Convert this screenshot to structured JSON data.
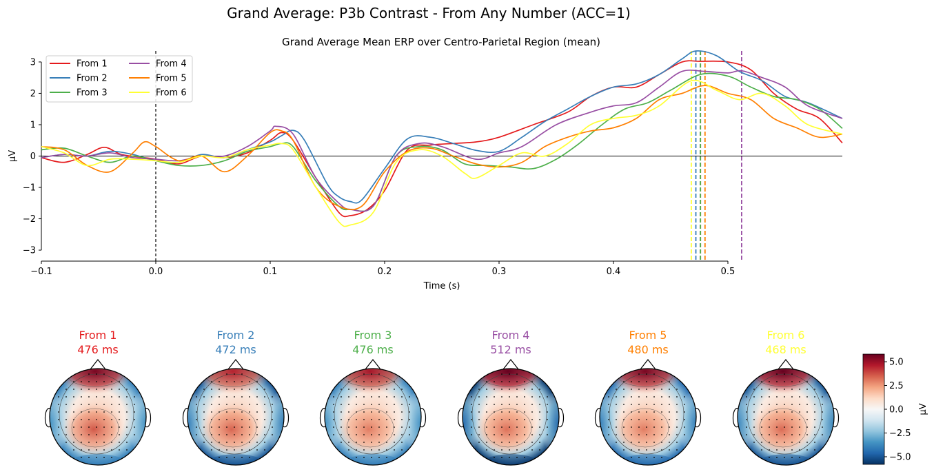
{
  "figure": {
    "suptitle": "Grand Average: P3b Contrast - From Any Number (ACC=1)"
  },
  "chart_data": [
    {
      "type": "line",
      "title": "Grand Average Mean ERP over Centro-Parietal Region (mean)",
      "xlabel": "Time (s)",
      "ylabel": "µV",
      "xlim": [
        -0.1,
        0.6
      ],
      "ylim": [
        -3.35,
        3.35
      ],
      "xticks": [
        -0.1,
        0.0,
        0.1,
        0.2,
        0.3,
        0.4,
        0.5
      ],
      "xtick_labels": [
        "−0.1",
        "0.0",
        "0.1",
        "0.2",
        "0.3",
        "0.4",
        "0.5"
      ],
      "yticks": [
        -3,
        -2,
        -1,
        0,
        1,
        2,
        3
      ],
      "ytick_labels": [
        "−3",
        "−2",
        "−1",
        "0",
        "1",
        "2",
        "3"
      ],
      "grid": false,
      "legend": {
        "placement": "top-left",
        "columns": 2
      },
      "reference_lines": [
        {
          "orientation": "vertical",
          "x": 0.0,
          "style": "dashed",
          "color": "#000000"
        },
        {
          "orientation": "horizontal",
          "y": 0.0,
          "style": "solid",
          "color": "#000000"
        }
      ],
      "peak_markers": [
        {
          "series": "From 6",
          "x": 0.468
        },
        {
          "series": "From 2",
          "x": 0.472
        },
        {
          "series": "From 1",
          "x": 0.476
        },
        {
          "series": "From 3",
          "x": 0.476
        },
        {
          "series": "From 5",
          "x": 0.48
        },
        {
          "series": "From 4",
          "x": 0.512
        }
      ],
      "series": [
        {
          "name": "From 1",
          "color": "#e41a1c",
          "points": [
            [
              -0.1,
              -0.05
            ],
            [
              -0.08,
              -0.2
            ],
            [
              -0.06,
              0.05
            ],
            [
              -0.045,
              0.28
            ],
            [
              -0.03,
              0.05
            ],
            [
              -0.01,
              -0.05
            ],
            [
              0.0,
              -0.1
            ],
            [
              0.02,
              -0.25
            ],
            [
              0.04,
              0.0
            ],
            [
              0.06,
              -0.05
            ],
            [
              0.08,
              0.1
            ],
            [
              0.1,
              0.5
            ],
            [
              0.11,
              0.75
            ],
            [
              0.12,
              0.5
            ],
            [
              0.14,
              -0.7
            ],
            [
              0.16,
              -1.8
            ],
            [
              0.17,
              -1.9
            ],
            [
              0.185,
              -1.7
            ],
            [
              0.2,
              -1.1
            ],
            [
              0.22,
              0.2
            ],
            [
              0.24,
              0.35
            ],
            [
              0.26,
              0.4
            ],
            [
              0.28,
              0.45
            ],
            [
              0.3,
              0.6
            ],
            [
              0.33,
              1.0
            ],
            [
              0.36,
              1.4
            ],
            [
              0.38,
              1.9
            ],
            [
              0.4,
              2.2
            ],
            [
              0.42,
              2.2
            ],
            [
              0.44,
              2.6
            ],
            [
              0.46,
              3.0
            ],
            [
              0.476,
              3.02
            ],
            [
              0.5,
              3.0
            ],
            [
              0.52,
              2.75
            ],
            [
              0.54,
              2.0
            ],
            [
              0.56,
              1.5
            ],
            [
              0.58,
              1.2
            ],
            [
              0.6,
              0.42
            ]
          ]
        },
        {
          "name": "From 2",
          "color": "#377eb8",
          "points": [
            [
              -0.1,
              -0.05
            ],
            [
              -0.08,
              0.05
            ],
            [
              -0.06,
              0.0
            ],
            [
              -0.04,
              0.15
            ],
            [
              -0.02,
              0.05
            ],
            [
              0.0,
              -0.15
            ],
            [
              0.02,
              -0.2
            ],
            [
              0.04,
              0.05
            ],
            [
              0.06,
              -0.05
            ],
            [
              0.08,
              0.2
            ],
            [
              0.1,
              0.45
            ],
            [
              0.11,
              0.65
            ],
            [
              0.12,
              0.82
            ],
            [
              0.13,
              0.5
            ],
            [
              0.15,
              -0.9
            ],
            [
              0.16,
              -1.3
            ],
            [
              0.17,
              -1.45
            ],
            [
              0.18,
              -1.4
            ],
            [
              0.2,
              -0.4
            ],
            [
              0.22,
              0.55
            ],
            [
              0.24,
              0.6
            ],
            [
              0.26,
              0.4
            ],
            [
              0.28,
              0.18
            ],
            [
              0.3,
              0.15
            ],
            [
              0.32,
              0.6
            ],
            [
              0.34,
              1.1
            ],
            [
              0.36,
              1.5
            ],
            [
              0.38,
              1.9
            ],
            [
              0.4,
              2.2
            ],
            [
              0.42,
              2.3
            ],
            [
              0.44,
              2.6
            ],
            [
              0.46,
              3.1
            ],
            [
              0.472,
              3.35
            ],
            [
              0.49,
              3.2
            ],
            [
              0.51,
              2.7
            ],
            [
              0.53,
              2.4
            ],
            [
              0.55,
              1.9
            ],
            [
              0.57,
              1.7
            ],
            [
              0.6,
              1.2
            ]
          ]
        },
        {
          "name": "From 3",
          "color": "#4daf4a",
          "points": [
            [
              -0.1,
              0.2
            ],
            [
              -0.08,
              0.25
            ],
            [
              -0.06,
              0.0
            ],
            [
              -0.04,
              -0.2
            ],
            [
              -0.02,
              0.0
            ],
            [
              0.0,
              -0.15
            ],
            [
              0.02,
              -0.3
            ],
            [
              0.04,
              -0.3
            ],
            [
              0.06,
              -0.15
            ],
            [
              0.08,
              0.15
            ],
            [
              0.1,
              0.3
            ],
            [
              0.11,
              0.4
            ],
            [
              0.12,
              0.3
            ],
            [
              0.14,
              -0.8
            ],
            [
              0.16,
              -1.6
            ],
            [
              0.17,
              -1.7
            ],
            [
              0.19,
              -1.6
            ],
            [
              0.21,
              0.0
            ],
            [
              0.23,
              0.3
            ],
            [
              0.25,
              0.2
            ],
            [
              0.27,
              -0.25
            ],
            [
              0.29,
              -0.3
            ],
            [
              0.31,
              -0.35
            ],
            [
              0.33,
              -0.4
            ],
            [
              0.35,
              -0.1
            ],
            [
              0.37,
              0.4
            ],
            [
              0.39,
              1.0
            ],
            [
              0.41,
              1.5
            ],
            [
              0.43,
              1.7
            ],
            [
              0.45,
              2.1
            ],
            [
              0.476,
              2.6
            ],
            [
              0.5,
              2.55
            ],
            [
              0.52,
              2.2
            ],
            [
              0.54,
              1.9
            ],
            [
              0.56,
              1.8
            ],
            [
              0.58,
              1.5
            ],
            [
              0.6,
              0.88
            ]
          ]
        },
        {
          "name": "From 4",
          "color": "#984ea3",
          "points": [
            [
              -0.1,
              -0.05
            ],
            [
              -0.08,
              0.05
            ],
            [
              -0.06,
              0.0
            ],
            [
              -0.04,
              0.1
            ],
            [
              -0.02,
              -0.05
            ],
            [
              0.0,
              -0.1
            ],
            [
              0.02,
              -0.15
            ],
            [
              0.04,
              0.0
            ],
            [
              0.06,
              0.0
            ],
            [
              0.08,
              0.3
            ],
            [
              0.1,
              0.8
            ],
            [
              0.105,
              0.95
            ],
            [
              0.12,
              0.7
            ],
            [
              0.14,
              -0.7
            ],
            [
              0.16,
              -1.5
            ],
            [
              0.17,
              -1.7
            ],
            [
              0.19,
              -1.6
            ],
            [
              0.21,
              0.0
            ],
            [
              0.23,
              0.4
            ],
            [
              0.25,
              0.3
            ],
            [
              0.28,
              -0.1
            ],
            [
              0.3,
              0.1
            ],
            [
              0.32,
              0.3
            ],
            [
              0.35,
              1.0
            ],
            [
              0.38,
              1.4
            ],
            [
              0.4,
              1.6
            ],
            [
              0.42,
              1.7
            ],
            [
              0.44,
              2.2
            ],
            [
              0.46,
              2.7
            ],
            [
              0.48,
              2.7
            ],
            [
              0.5,
              2.65
            ],
            [
              0.512,
              2.72
            ],
            [
              0.53,
              2.5
            ],
            [
              0.55,
              2.2
            ],
            [
              0.57,
              1.6
            ],
            [
              0.6,
              1.2
            ]
          ]
        },
        {
          "name": "From 5",
          "color": "#ff7f00",
          "points": [
            [
              -0.1,
              0.3
            ],
            [
              -0.08,
              0.2
            ],
            [
              -0.06,
              -0.3
            ],
            [
              -0.04,
              -0.5
            ],
            [
              -0.02,
              0.1
            ],
            [
              -0.01,
              0.45
            ],
            [
              0.0,
              0.3
            ],
            [
              0.02,
              -0.15
            ],
            [
              0.04,
              0.0
            ],
            [
              0.06,
              -0.5
            ],
            [
              0.08,
              0.0
            ],
            [
              0.1,
              0.75
            ],
            [
              0.11,
              0.8
            ],
            [
              0.12,
              0.5
            ],
            [
              0.14,
              -1.0
            ],
            [
              0.16,
              -1.6
            ],
            [
              0.18,
              -1.6
            ],
            [
              0.2,
              -0.5
            ],
            [
              0.22,
              0.15
            ],
            [
              0.24,
              0.25
            ],
            [
              0.26,
              0.0
            ],
            [
              0.28,
              -0.25
            ],
            [
              0.3,
              -0.35
            ],
            [
              0.32,
              -0.2
            ],
            [
              0.34,
              0.3
            ],
            [
              0.36,
              0.6
            ],
            [
              0.38,
              0.8
            ],
            [
              0.4,
              0.9
            ],
            [
              0.42,
              1.2
            ],
            [
              0.44,
              1.8
            ],
            [
              0.46,
              2.0
            ],
            [
              0.48,
              2.25
            ],
            [
              0.5,
              2.0
            ],
            [
              0.52,
              1.8
            ],
            [
              0.54,
              1.2
            ],
            [
              0.56,
              0.9
            ],
            [
              0.58,
              0.6
            ],
            [
              0.6,
              0.7
            ]
          ]
        },
        {
          "name": "From 6",
          "color": "#ffff33",
          "points": [
            [
              -0.1,
              0.3
            ],
            [
              -0.08,
              0.1
            ],
            [
              -0.06,
              -0.3
            ],
            [
              -0.04,
              -0.1
            ],
            [
              -0.02,
              -0.1
            ],
            [
              0.0,
              -0.15
            ],
            [
              0.02,
              -0.2
            ],
            [
              0.04,
              0.0
            ],
            [
              0.06,
              -0.05
            ],
            [
              0.08,
              0.2
            ],
            [
              0.1,
              0.35
            ],
            [
              0.11,
              0.4
            ],
            [
              0.12,
              0.2
            ],
            [
              0.14,
              -1.0
            ],
            [
              0.16,
              -2.1
            ],
            [
              0.17,
              -2.2
            ],
            [
              0.19,
              -1.8
            ],
            [
              0.21,
              -0.2
            ],
            [
              0.23,
              0.2
            ],
            [
              0.25,
              0.0
            ],
            [
              0.27,
              -0.55
            ],
            [
              0.28,
              -0.7
            ],
            [
              0.3,
              -0.3
            ],
            [
              0.32,
              0.1
            ],
            [
              0.34,
              0.0
            ],
            [
              0.36,
              0.4
            ],
            [
              0.38,
              1.0
            ],
            [
              0.4,
              1.2
            ],
            [
              0.42,
              1.3
            ],
            [
              0.44,
              1.6
            ],
            [
              0.468,
              2.4
            ],
            [
              0.49,
              2.1
            ],
            [
              0.51,
              1.8
            ],
            [
              0.53,
              2.0
            ],
            [
              0.55,
              1.6
            ],
            [
              0.57,
              1.0
            ],
            [
              0.6,
              0.7
            ]
          ]
        }
      ]
    },
    {
      "type": "heatmap",
      "subtype": "scalp-topography",
      "colormap": "RdBu_r",
      "colorbar": {
        "label": "µV",
        "vmin": -5.8,
        "vmax": 5.8,
        "ticks": [
          5.0,
          2.5,
          0.0,
          -2.5,
          -5.0
        ],
        "tick_labels": [
          "5.0",
          "2.5",
          "0.0",
          "−2.5",
          "−5.0"
        ],
        "stops": [
          "#053061",
          "#2166ac",
          "#4393c3",
          "#92c5de",
          "#d1e5f0",
          "#f7f7f7",
          "#fddbc7",
          "#f4a582",
          "#d6604d",
          "#b2182b",
          "#67001f"
        ]
      },
      "maps": [
        {
          "series": "From 1",
          "color": "#e41a1c",
          "label": "From 1",
          "time_label": "476 ms",
          "frontal": 5.5,
          "parietal": 3.6,
          "temporal": -3.5,
          "occipital": -4.0
        },
        {
          "series": "From 2",
          "color": "#377eb8",
          "label": "From 2",
          "time_label": "472 ms",
          "frontal": 4.5,
          "parietal": 3.4,
          "temporal": -4.0,
          "occipital": -5.0
        },
        {
          "series": "From 3",
          "color": "#4daf4a",
          "label": "From 3",
          "time_label": "476 ms",
          "frontal": 4.8,
          "parietal": 3.0,
          "temporal": -3.5,
          "occipital": -4.0
        },
        {
          "series": "From 4",
          "color": "#984ea3",
          "label": "From 4",
          "time_label": "512 ms",
          "frontal": 6.0,
          "parietal": 3.2,
          "temporal": -4.5,
          "occipital": -5.5
        },
        {
          "series": "From 5",
          "color": "#ff7f00",
          "label": "From 5",
          "time_label": "480 ms",
          "frontal": 5.5,
          "parietal": 3.0,
          "temporal": -4.0,
          "occipital": -4.5
        },
        {
          "series": "From 6",
          "color": "#ffff33",
          "label": "From 6",
          "time_label": "468 ms",
          "frontal": 5.8,
          "parietal": 3.3,
          "temporal": -3.8,
          "occipital": -5.0
        }
      ]
    }
  ]
}
